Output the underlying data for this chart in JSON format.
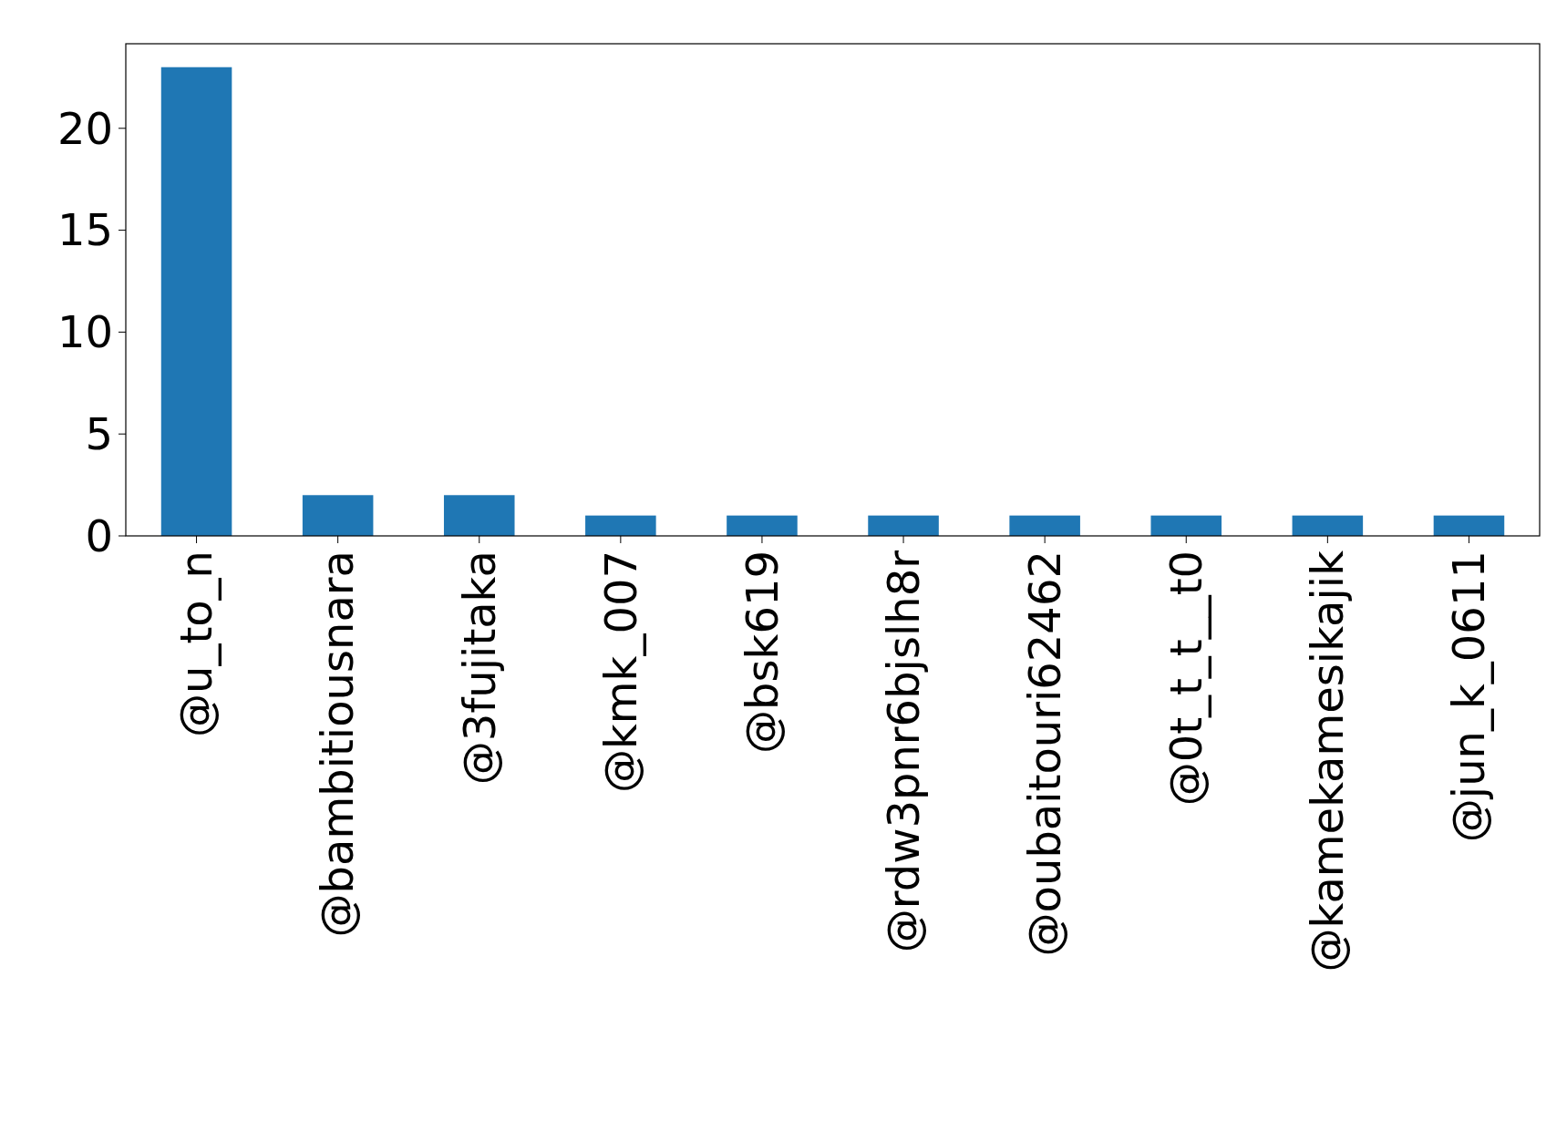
{
  "chart_data": {
    "type": "bar",
    "categories": [
      "@u_to_n",
      "@bambitiousnara",
      "@3fujitaka",
      "@kmk_007",
      "@bsk619",
      "@rdw3pnr6bjslh8r",
      "@oubaitouri62462",
      "@0t_t_t__t0",
      "@kamekamesikajik",
      "@jun_k_0611"
    ],
    "values": [
      23,
      2,
      2,
      1,
      1,
      1,
      1,
      1,
      1,
      1
    ],
    "color": "#1f77b4",
    "ylim": [
      0,
      24.15
    ],
    "yticks": [
      0,
      5,
      10,
      15,
      20
    ],
    "grid": false
  }
}
